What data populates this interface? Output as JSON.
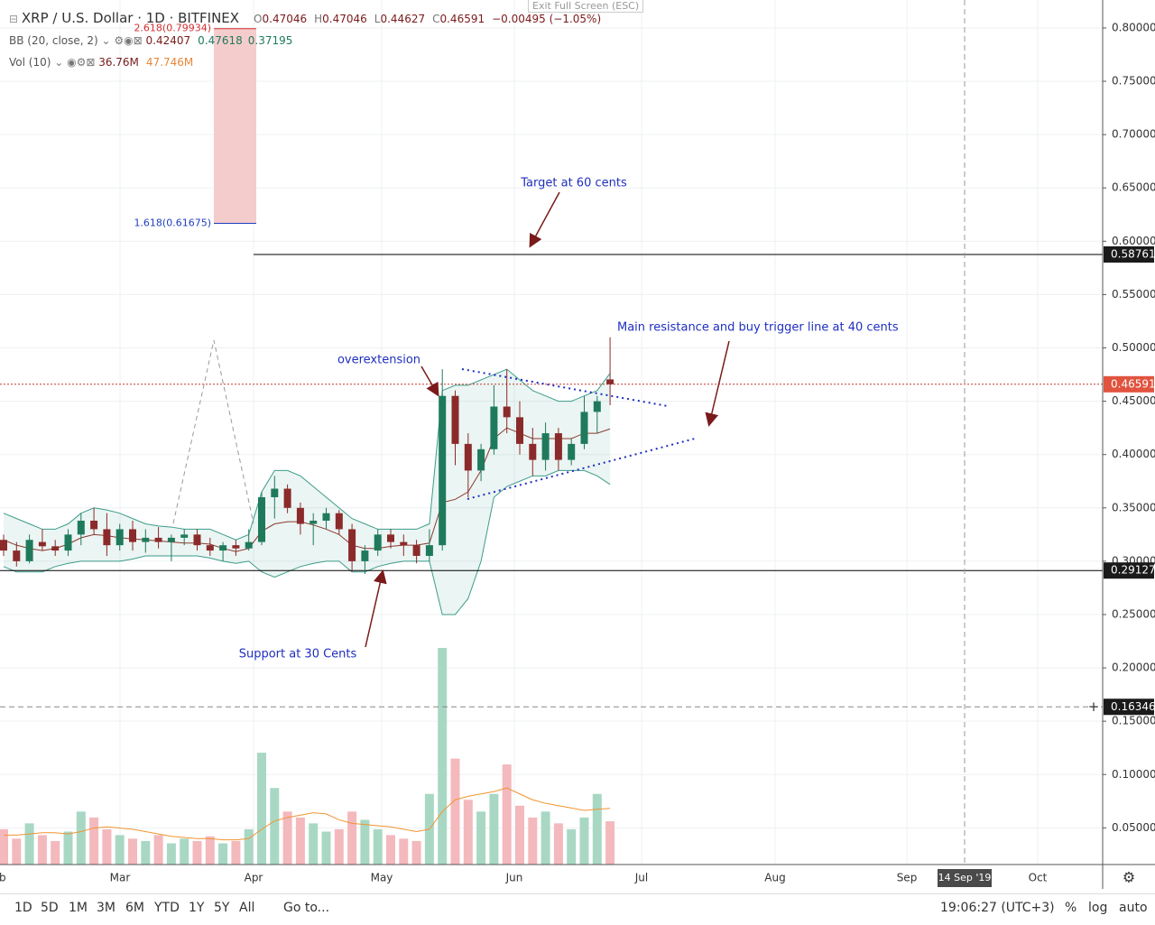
{
  "header": {
    "symbol": "XRP / U.S. Dollar · 1D · BITFINEX",
    "ohlc": [
      {
        "key": "O",
        "value": "0.47046"
      },
      {
        "key": "H",
        "value": "0.47046"
      },
      {
        "key": "L",
        "value": "0.44627"
      },
      {
        "key": "C",
        "value": "0.46591"
      }
    ],
    "change": "−0.00495 (−1.05%)",
    "bb_label": "BB (20, close, 2)",
    "bb_values": [
      "0.42407",
      "0.47618",
      "0.37195"
    ],
    "vol_label": "Vol (10)",
    "vol_values": [
      "36.76M",
      "47.746M"
    ],
    "exit": "Exit Full Screen (ESC)"
  },
  "chart_data": {
    "type": "candlestick",
    "open": [
      0.32,
      0.31,
      0.3,
      0.318,
      0.314,
      0.31,
      0.325,
      0.338,
      0.33,
      0.315,
      0.33,
      0.318,
      0.322,
      0.318,
      0.322,
      0.325,
      0.315,
      0.31,
      0.315,
      0.312,
      0.318,
      0.36,
      0.368,
      0.35,
      0.335,
      0.338,
      0.345,
      0.33,
      0.3,
      0.31,
      0.325,
      0.318,
      0.315,
      0.305,
      0.315,
      0.455,
      0.41,
      0.385,
      0.405,
      0.445,
      0.435,
      0.41,
      0.395,
      0.42,
      0.395,
      0.41,
      0.44,
      0.47046
    ],
    "high": [
      0.325,
      0.318,
      0.325,
      0.33,
      0.32,
      0.33,
      0.345,
      0.35,
      0.345,
      0.335,
      0.338,
      0.33,
      0.332,
      0.325,
      0.33,
      0.33,
      0.322,
      0.318,
      0.32,
      0.33,
      0.365,
      0.38,
      0.372,
      0.355,
      0.345,
      0.35,
      0.348,
      0.335,
      0.315,
      0.33,
      0.33,
      0.325,
      0.32,
      0.33,
      0.48,
      0.46,
      0.42,
      0.41,
      0.465,
      0.48,
      0.45,
      0.425,
      0.43,
      0.425,
      0.415,
      0.455,
      0.455,
      0.51
    ],
    "low": [
      0.305,
      0.295,
      0.298,
      0.31,
      0.305,
      0.305,
      0.315,
      0.325,
      0.305,
      0.31,
      0.31,
      0.308,
      0.312,
      0.3,
      0.315,
      0.31,
      0.305,
      0.3,
      0.305,
      0.31,
      0.315,
      0.34,
      0.345,
      0.325,
      0.315,
      0.33,
      0.325,
      0.29,
      0.288,
      0.305,
      0.312,
      0.305,
      0.298,
      0.3,
      0.31,
      0.39,
      0.36,
      0.375,
      0.4,
      0.42,
      0.4,
      0.38,
      0.385,
      0.385,
      0.39,
      0.405,
      0.42,
      0.44627
    ],
    "close": [
      0.31,
      0.3,
      0.32,
      0.314,
      0.31,
      0.325,
      0.338,
      0.33,
      0.315,
      0.33,
      0.318,
      0.322,
      0.318,
      0.322,
      0.325,
      0.315,
      0.31,
      0.315,
      0.312,
      0.318,
      0.36,
      0.368,
      0.35,
      0.335,
      0.338,
      0.345,
      0.33,
      0.3,
      0.31,
      0.325,
      0.318,
      0.315,
      0.305,
      0.315,
      0.455,
      0.41,
      0.385,
      0.405,
      0.445,
      0.435,
      0.41,
      0.395,
      0.42,
      0.395,
      0.41,
      0.44,
      0.45,
      0.46591
    ],
    "up_color": "#1f7a5c",
    "down_color": "#8b2a2a",
    "bb": {
      "upper": [
        0.345,
        0.34,
        0.335,
        0.33,
        0.33,
        0.335,
        0.345,
        0.35,
        0.348,
        0.345,
        0.34,
        0.335,
        0.333,
        0.332,
        0.33,
        0.33,
        0.33,
        0.325,
        0.32,
        0.325,
        0.365,
        0.385,
        0.385,
        0.38,
        0.37,
        0.36,
        0.35,
        0.34,
        0.335,
        0.33,
        0.33,
        0.33,
        0.33,
        0.335,
        0.46,
        0.465,
        0.465,
        0.47,
        0.475,
        0.48,
        0.47,
        0.46,
        0.455,
        0.45,
        0.45,
        0.455,
        0.46,
        0.47618
      ],
      "basis": [
        0.32,
        0.315,
        0.312,
        0.31,
        0.312,
        0.316,
        0.322,
        0.325,
        0.324,
        0.322,
        0.321,
        0.32,
        0.319,
        0.318,
        0.317,
        0.317,
        0.316,
        0.312,
        0.309,
        0.312,
        0.328,
        0.335,
        0.337,
        0.337,
        0.334,
        0.33,
        0.325,
        0.315,
        0.312,
        0.312,
        0.314,
        0.315,
        0.315,
        0.317,
        0.355,
        0.358,
        0.365,
        0.385,
        0.415,
        0.425,
        0.42,
        0.415,
        0.415,
        0.415,
        0.415,
        0.42,
        0.42,
        0.42407
      ],
      "lower": [
        0.295,
        0.29,
        0.29,
        0.29,
        0.295,
        0.298,
        0.3,
        0.3,
        0.3,
        0.3,
        0.302,
        0.305,
        0.305,
        0.305,
        0.305,
        0.305,
        0.303,
        0.3,
        0.298,
        0.3,
        0.29,
        0.285,
        0.29,
        0.295,
        0.298,
        0.3,
        0.3,
        0.29,
        0.29,
        0.295,
        0.298,
        0.3,
        0.3,
        0.3,
        0.25,
        0.25,
        0.265,
        0.3,
        0.36,
        0.37,
        0.375,
        0.38,
        0.38,
        0.385,
        0.385,
        0.385,
        0.38,
        0.37195
      ],
      "band_color": "#3d9c8a",
      "basis_color": "#8b3a2f"
    },
    "volume": {
      "values": [
        30,
        22,
        35,
        25,
        20,
        28,
        45,
        40,
        30,
        25,
        22,
        20,
        25,
        18,
        22,
        20,
        24,
        18,
        20,
        30,
        95,
        65,
        45,
        40,
        35,
        28,
        30,
        45,
        38,
        30,
        25,
        22,
        20,
        60,
        184,
        90,
        55,
        45,
        60,
        85,
        50,
        40,
        45,
        35,
        30,
        40,
        60,
        36.76
      ],
      "ma": [
        25,
        25,
        26,
        27,
        27,
        26,
        28,
        31,
        32,
        31,
        30,
        28,
        26,
        24,
        23,
        22,
        22,
        21,
        21,
        22,
        30,
        37,
        40,
        42,
        44,
        43,
        38,
        35,
        34,
        33,
        32,
        30,
        28,
        30,
        45,
        55,
        58,
        60,
        62,
        65,
        60,
        55,
        52,
        50,
        48,
        46,
        47,
        47.746
      ],
      "up_color": "#a8d8c4",
      "down_color": "#f3b9bd",
      "ma_color": "#f19433"
    },
    "ylim": [
      0.0156,
      0.8262
    ],
    "yticks": [
      {
        "value": 0.05,
        "label": "0.05000"
      },
      {
        "value": 0.1,
        "label": "0.10000"
      },
      {
        "value": 0.15,
        "label": "0.15000"
      },
      {
        "value": 0.2,
        "label": "0.20000"
      },
      {
        "value": 0.25,
        "label": "0.25000"
      },
      {
        "value": 0.3,
        "label": "0.30000"
      },
      {
        "value": 0.35,
        "label": "0.35000"
      },
      {
        "value": 0.4,
        "label": "0.40000"
      },
      {
        "value": 0.45,
        "label": "0.45000"
      },
      {
        "value": 0.5,
        "label": "0.50000"
      },
      {
        "value": 0.55,
        "label": "0.55000"
      },
      {
        "value": 0.6,
        "label": "0.60000"
      },
      {
        "value": 0.65,
        "label": "0.65000"
      },
      {
        "value": 0.7,
        "label": "0.70000"
      },
      {
        "value": 0.75,
        "label": "0.75000"
      },
      {
        "value": 0.8,
        "label": "0.80000"
      }
    ],
    "grid": true,
    "xticks": [
      "Feb",
      "Mar",
      "Apr",
      "May",
      "Jun",
      "Jul",
      "Aug",
      "Sep",
      "Oct"
    ],
    "levels": [
      {
        "value": 0.58761,
        "color": "#000000",
        "style": "solid"
      },
      {
        "value": 0.46591,
        "color": "#c0392b",
        "style": "dotted"
      },
      {
        "value": 0.29127,
        "color": "#000000",
        "style": "solid"
      },
      {
        "value": 0.16346,
        "color": "#888888",
        "style": "dashed"
      }
    ],
    "fib": [
      {
        "value": 0.79934,
        "label": "2.618(0.79934)",
        "color": "#d32f2f"
      },
      {
        "value": 0.61675,
        "label": "1.618(0.61675)",
        "color": "#1f3fbf"
      }
    ],
    "fib_fill": "#f5cccc",
    "annotations": [
      "Target at 60 cents",
      "Main resistance and buy trigger line at 40 cents",
      "overextension",
      "Support at 30 Cents"
    ],
    "crosshair_date": "14 Sep '19"
  },
  "toolbar": {
    "ranges": [
      "1D",
      "5D",
      "1M",
      "3M",
      "6M",
      "YTD",
      "1Y",
      "5Y",
      "All"
    ],
    "goto": "Go to...",
    "time": "19:06:27 (UTC+3)",
    "options": [
      "%",
      "log",
      "auto"
    ]
  }
}
